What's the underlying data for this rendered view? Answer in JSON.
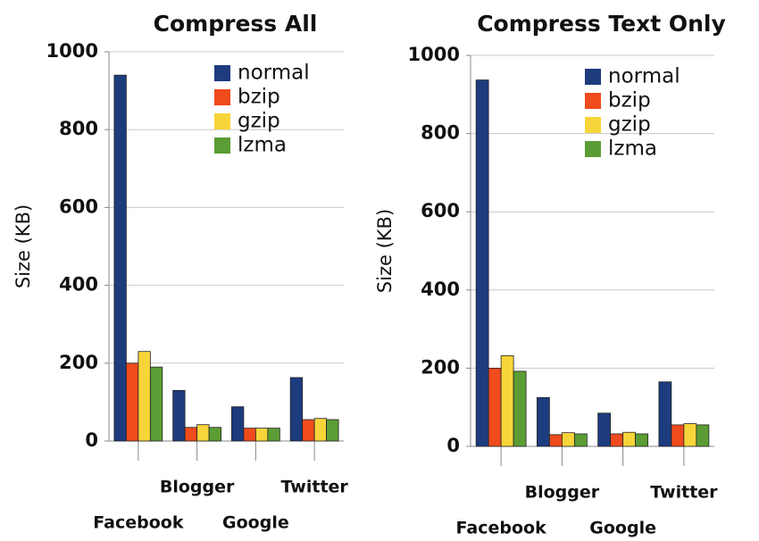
{
  "chart_data": [
    {
      "type": "bar",
      "title": "Compress All",
      "y_label": "Size (KB)",
      "categories": [
        "Facebook",
        "Blogger",
        "Google",
        "Twitter"
      ],
      "series": [
        {
          "name": "normal",
          "color": "#1d3c7e",
          "values": [
            940,
            130,
            88,
            163
          ]
        },
        {
          "name": "bzip",
          "color": "#ef4b1c",
          "values": [
            200,
            35,
            33,
            55
          ]
        },
        {
          "name": "gzip",
          "color": "#f7d53a",
          "values": [
            230,
            42,
            33,
            58
          ]
        },
        {
          "name": "lzma",
          "color": "#5b9d34",
          "values": [
            190,
            35,
            33,
            55
          ]
        }
      ],
      "ylim": [
        0,
        1000
      ],
      "yticks": [
        0,
        200,
        400,
        600,
        800,
        1000
      ],
      "grid": true,
      "legend": "upper right"
    },
    {
      "type": "bar",
      "title": "Compress Text Only",
      "y_label": "Size (KB)",
      "categories": [
        "Facebook",
        "Blogger",
        "Google",
        "Twitter"
      ],
      "series": [
        {
          "name": "normal",
          "color": "#1d3c7e",
          "values": [
            937,
            125,
            85,
            165
          ]
        },
        {
          "name": "bzip",
          "color": "#ef4b1c",
          "values": [
            200,
            30,
            32,
            55
          ]
        },
        {
          "name": "gzip",
          "color": "#f7d53a",
          "values": [
            232,
            35,
            36,
            58
          ]
        },
        {
          "name": "lzma",
          "color": "#5b9d34",
          "values": [
            192,
            32,
            32,
            55
          ]
        }
      ],
      "ylim": [
        0,
        1000
      ],
      "yticks": [
        0,
        200,
        400,
        600,
        800,
        1000
      ],
      "grid": true,
      "legend": "upper right"
    }
  ]
}
